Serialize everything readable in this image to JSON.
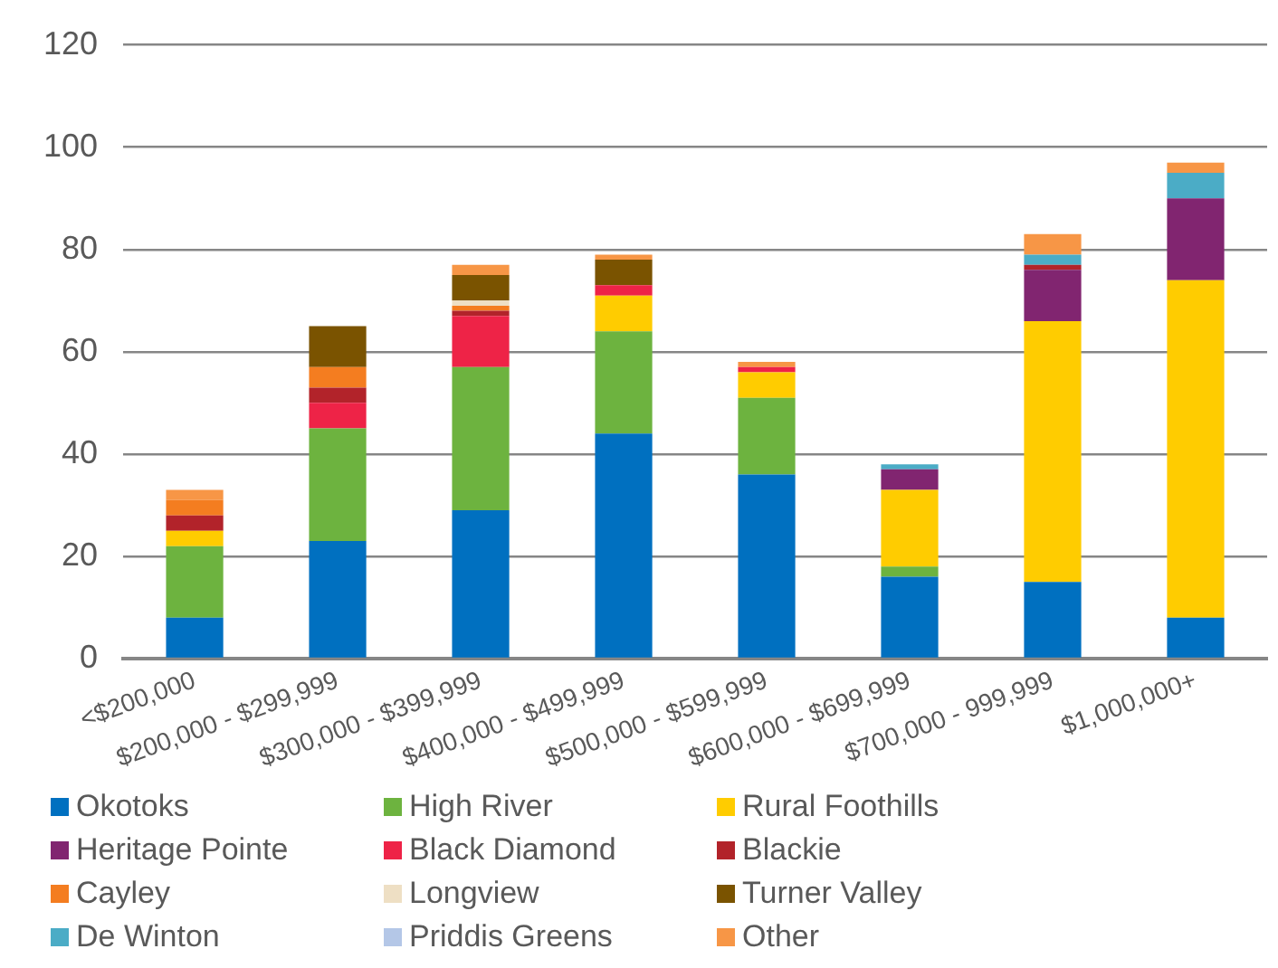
{
  "chart_data": {
    "type": "bar",
    "stacked": true,
    "categories": [
      "<$200,000",
      "$200,000 - $299,999",
      "$300,000 - $399,999",
      "$400,000 - $499,999",
      "$500,000 - $599,999",
      "$600,000 - $699,999",
      "$700,000 - 999,999",
      "$1,000,000+"
    ],
    "series": [
      {
        "name": "Okotoks",
        "color": "#0070c0",
        "values": [
          8,
          23,
          29,
          44,
          36,
          16,
          15,
          8
        ]
      },
      {
        "name": "High River",
        "color": "#6db33f",
        "values": [
          14,
          22,
          28,
          20,
          15,
          2,
          0,
          0
        ]
      },
      {
        "name": "Rural Foothills",
        "color": "#ffcc00",
        "values": [
          3,
          0,
          0,
          7,
          5,
          15,
          51,
          66
        ]
      },
      {
        "name": "Heritage Pointe",
        "color": "#812570",
        "values": [
          0,
          0,
          0,
          0,
          0,
          4,
          10,
          16
        ]
      },
      {
        "name": "Black Diamond",
        "color": "#ee2347",
        "values": [
          0,
          5,
          10,
          2,
          1,
          0,
          0,
          0
        ]
      },
      {
        "name": "Blackie",
        "color": "#b2232a",
        "values": [
          3,
          3,
          1,
          0,
          0,
          0,
          1,
          0
        ]
      },
      {
        "name": "Cayley",
        "color": "#f47d20",
        "values": [
          3,
          4,
          1,
          0,
          0,
          0,
          0,
          0
        ]
      },
      {
        "name": "Longview",
        "color": "#eedfc4",
        "values": [
          0,
          0,
          1,
          0,
          0,
          0,
          0,
          0
        ]
      },
      {
        "name": "Turner Valley",
        "color": "#7a5300",
        "values": [
          0,
          8,
          5,
          5,
          0,
          0,
          0,
          0
        ]
      },
      {
        "name": "De Winton",
        "color": "#4bacc6",
        "values": [
          0,
          0,
          0,
          0,
          0,
          1,
          2,
          5
        ]
      },
      {
        "name": "Priddis Greens",
        "color": "#b4c7e7",
        "values": [
          0,
          0,
          0,
          0,
          0,
          0,
          0,
          0
        ]
      },
      {
        "name": "Other",
        "color": "#f79646",
        "values": [
          2,
          0,
          2,
          1,
          1,
          0,
          4,
          2
        ]
      }
    ],
    "ylim": [
      0,
      120
    ],
    "yticks": [
      0,
      20,
      40,
      60,
      80,
      100,
      120
    ],
    "grid": "y",
    "legend": "bottom"
  }
}
